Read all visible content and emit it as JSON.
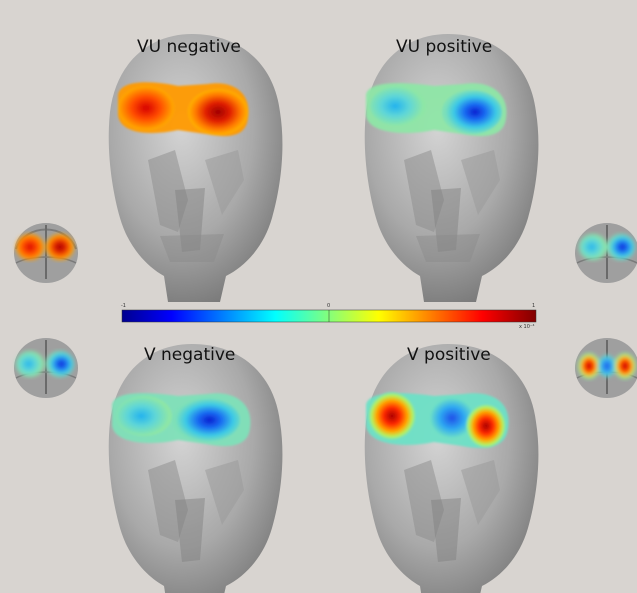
{
  "background_color": "#d8d4d0",
  "head_color": "#b5b5b5",
  "panels": [
    {
      "title": "VU negative",
      "pattern": "warm",
      "left_level": 0.85,
      "right_level": 0.95
    },
    {
      "title": "VU positive",
      "pattern": "cool",
      "left_level": 0.45,
      "right_level": 0.1
    },
    {
      "title": "V negative",
      "pattern": "cool",
      "left_level": 0.25,
      "right_level": 0.08
    },
    {
      "title": "V positive",
      "pattern": "mixed",
      "left_level": 0.85,
      "right_level": 0.9
    }
  ],
  "colorbar": {
    "min_label": "-1",
    "mid_label": "0",
    "max_label": "1",
    "scale_label": "x 10⁻⁴",
    "colors": [
      "#00008f",
      "#0000ff",
      "#00ffff",
      "#ffff00",
      "#ff0000",
      "#800000"
    ]
  }
}
